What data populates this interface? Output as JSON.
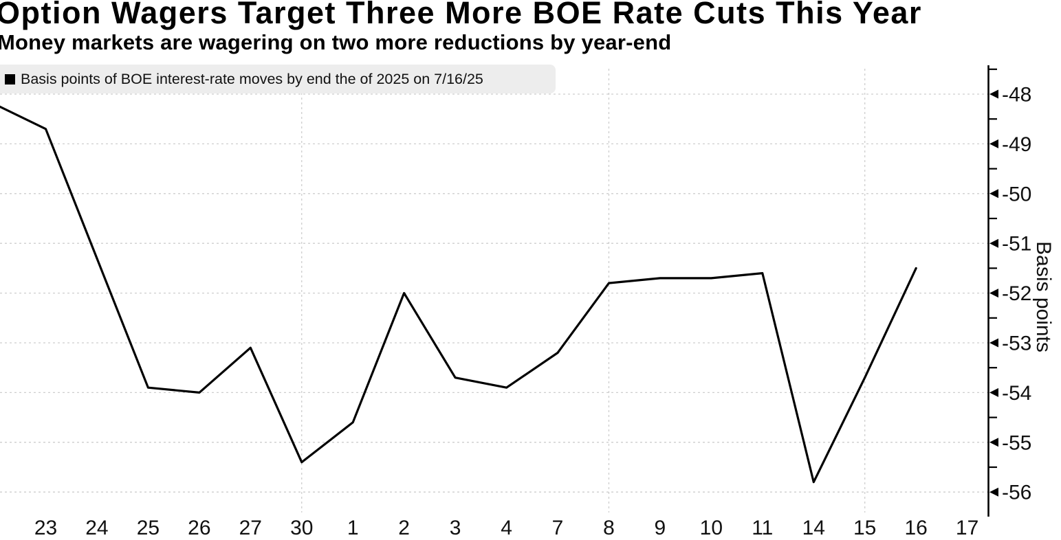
{
  "header": {
    "title": "Option Wagers Target Three More BOE Rate Cuts This Year",
    "subtitle": "Money markets are wagering on two more reductions by year-end"
  },
  "legend": {
    "label": "Basis points of BOE interest-rate moves by end the of 2025 on 7/16/25"
  },
  "chart_data": {
    "type": "line",
    "title": "Option Wagers Target Three More BOE Rate Cuts This Year",
    "subtitle": "Money markets are wagering on two more reductions by year-end",
    "legend_position": "top-left",
    "grid": "dashed",
    "series": [
      {
        "name": "Basis points of BOE interest-rate moves by end the of 2025 on 7/16/25",
        "lead_in_value": -48.2,
        "x_labels": [
          "23",
          "24",
          "25",
          "26",
          "27",
          "30",
          "1",
          "2",
          "3",
          "4",
          "7",
          "8",
          "9",
          "10",
          "11",
          "14",
          "15",
          "16"
        ],
        "values": [
          -48.7,
          -51.3,
          -53.9,
          -54.0,
          -53.1,
          -55.4,
          -54.6,
          -52.0,
          -53.7,
          -53.9,
          -53.2,
          -51.8,
          -51.7,
          -51.7,
          -51.6,
          -55.8,
          -53.7,
          -51.5
        ],
        "color": "#000000"
      }
    ],
    "x_axis": {
      "tick_labels": [
        "23",
        "24",
        "25",
        "26",
        "27",
        "30",
        "1",
        "2",
        "3",
        "4",
        "7",
        "8",
        "9",
        "10",
        "11",
        "14",
        "15",
        "16",
        "17"
      ],
      "gridline_labels": [
        "30",
        "8",
        "15"
      ]
    },
    "y_axis": {
      "label": "Basis points",
      "side": "right",
      "ticks": [
        -48,
        -49,
        -50,
        -51,
        -52,
        -53,
        -54,
        -55,
        -56
      ],
      "minor_tick_step": 0.5,
      "ylim": [
        -56.6,
        -47.4
      ]
    }
  },
  "colors": {
    "line": "#000000",
    "grid": "#cdcdcd",
    "legend_bg": "#ededed",
    "text": "#000000",
    "background": "#ffffff"
  }
}
